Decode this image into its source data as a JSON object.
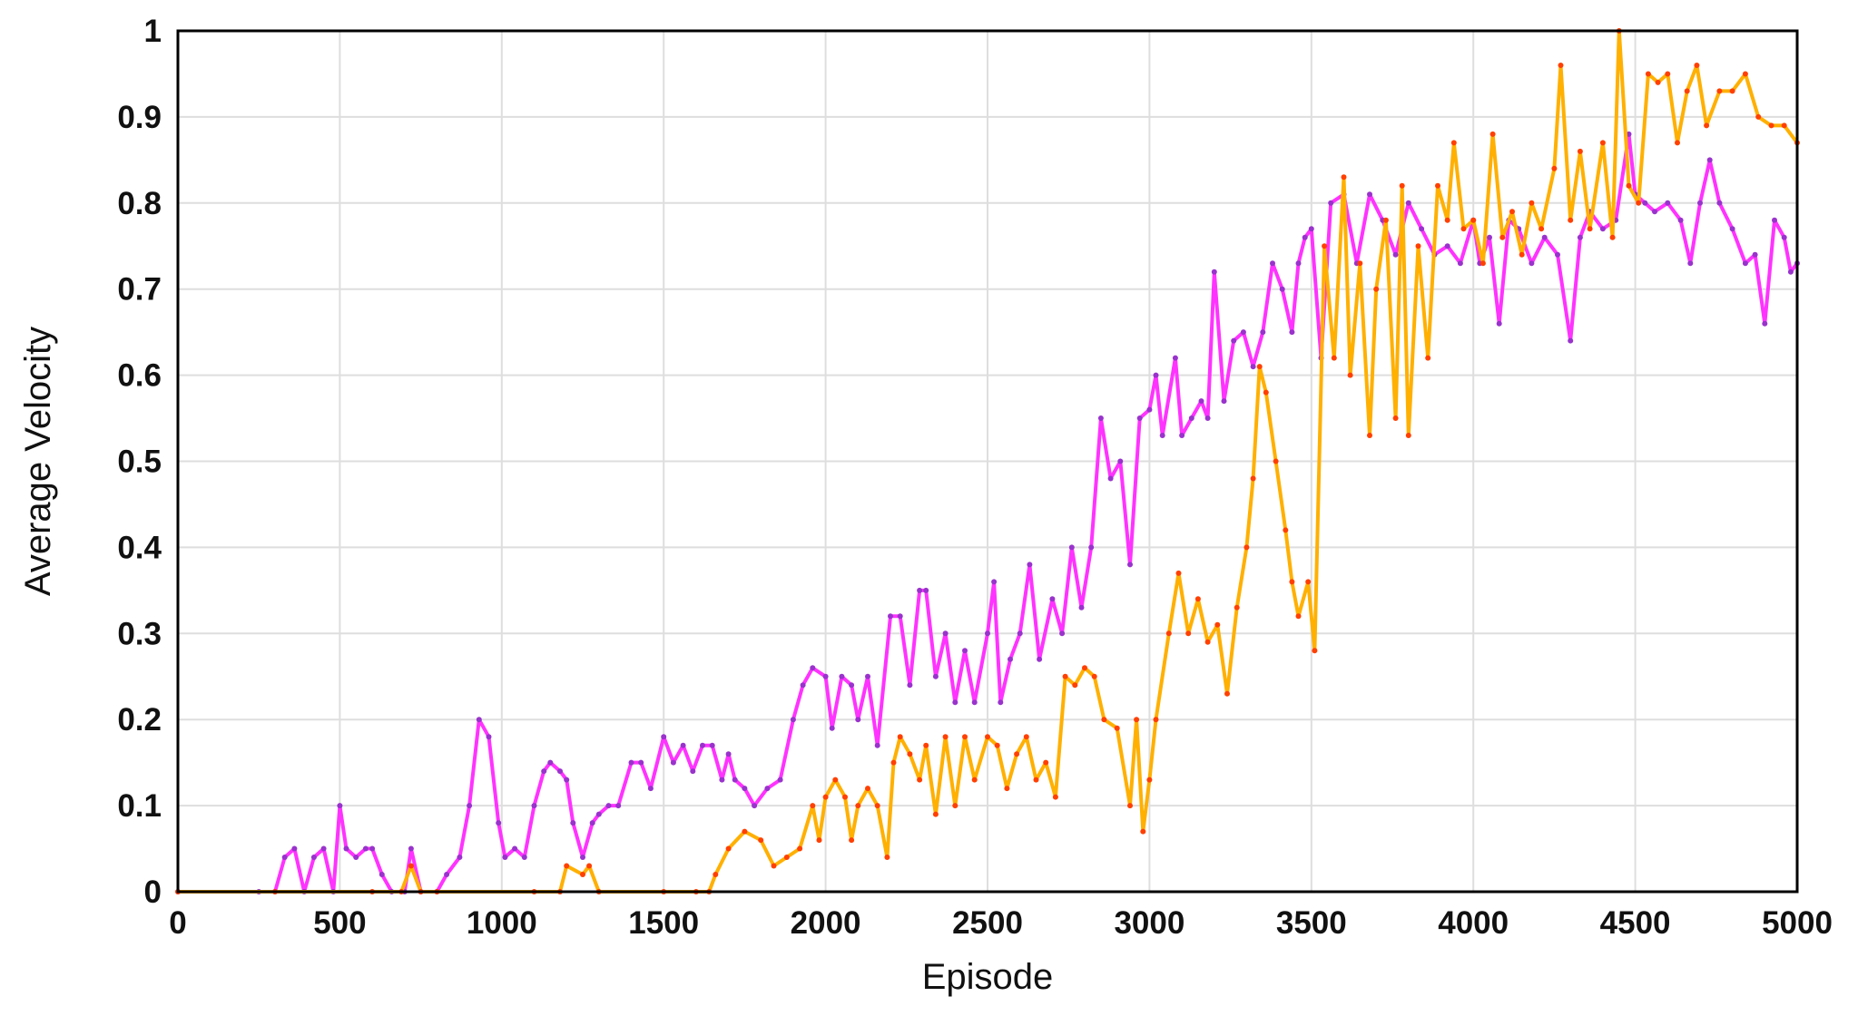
{
  "chart_data": {
    "type": "line",
    "title": "",
    "xlabel": "Episode",
    "ylabel": "Average Velocity",
    "xlim": [
      0,
      5000
    ],
    "ylim": [
      0,
      1
    ],
    "x_ticks": [
      "0",
      "500",
      "1000",
      "1500",
      "2000",
      "2500",
      "3000",
      "3500",
      "4000",
      "4500",
      "5000"
    ],
    "y_ticks": [
      "0",
      "0.1",
      "0.2",
      "0.3",
      "0.4",
      "0.5",
      "0.6",
      "0.7",
      "0.8",
      "0.9",
      "1"
    ],
    "grid": true,
    "legend": "none",
    "series": [
      {
        "color": "#ff33ff",
        "accent_color": "#9933cc",
        "points": [
          [
            0,
            0
          ],
          [
            250,
            0
          ],
          [
            300,
            0
          ],
          [
            330,
            0.04
          ],
          [
            360,
            0.05
          ],
          [
            390,
            0.0
          ],
          [
            420,
            0.04
          ],
          [
            450,
            0.05
          ],
          [
            480,
            0.0
          ],
          [
            500,
            0.1
          ],
          [
            520,
            0.05
          ],
          [
            550,
            0.04
          ],
          [
            580,
            0.05
          ],
          [
            600,
            0.05
          ],
          [
            630,
            0.02
          ],
          [
            660,
            0.0
          ],
          [
            700,
            0.0
          ],
          [
            720,
            0.05
          ],
          [
            750,
            0.0
          ],
          [
            800,
            0.0
          ],
          [
            830,
            0.02
          ],
          [
            870,
            0.04
          ],
          [
            900,
            0.1
          ],
          [
            930,
            0.2
          ],
          [
            960,
            0.18
          ],
          [
            990,
            0.08
          ],
          [
            1010,
            0.04
          ],
          [
            1040,
            0.05
          ],
          [
            1070,
            0.04
          ],
          [
            1100,
            0.1
          ],
          [
            1130,
            0.14
          ],
          [
            1150,
            0.15
          ],
          [
            1180,
            0.14
          ],
          [
            1200,
            0.13
          ],
          [
            1220,
            0.08
          ],
          [
            1250,
            0.04
          ],
          [
            1280,
            0.08
          ],
          [
            1300,
            0.09
          ],
          [
            1330,
            0.1
          ],
          [
            1360,
            0.1
          ],
          [
            1400,
            0.15
          ],
          [
            1430,
            0.15
          ],
          [
            1460,
            0.12
          ],
          [
            1500,
            0.18
          ],
          [
            1530,
            0.15
          ],
          [
            1560,
            0.17
          ],
          [
            1590,
            0.14
          ],
          [
            1620,
            0.17
          ],
          [
            1650,
            0.17
          ],
          [
            1680,
            0.13
          ],
          [
            1700,
            0.16
          ],
          [
            1720,
            0.13
          ],
          [
            1750,
            0.12
          ],
          [
            1780,
            0.1
          ],
          [
            1820,
            0.12
          ],
          [
            1860,
            0.13
          ],
          [
            1900,
            0.2
          ],
          [
            1930,
            0.24
          ],
          [
            1960,
            0.26
          ],
          [
            2000,
            0.25
          ],
          [
            2020,
            0.19
          ],
          [
            2050,
            0.25
          ],
          [
            2080,
            0.24
          ],
          [
            2100,
            0.2
          ],
          [
            2130,
            0.25
          ],
          [
            2160,
            0.17
          ],
          [
            2200,
            0.32
          ],
          [
            2230,
            0.32
          ],
          [
            2260,
            0.24
          ],
          [
            2290,
            0.35
          ],
          [
            2310,
            0.35
          ],
          [
            2340,
            0.25
          ],
          [
            2370,
            0.3
          ],
          [
            2400,
            0.22
          ],
          [
            2430,
            0.28
          ],
          [
            2460,
            0.22
          ],
          [
            2500,
            0.3
          ],
          [
            2520,
            0.36
          ],
          [
            2540,
            0.22
          ],
          [
            2570,
            0.27
          ],
          [
            2600,
            0.3
          ],
          [
            2630,
            0.38
          ],
          [
            2660,
            0.27
          ],
          [
            2700,
            0.34
          ],
          [
            2730,
            0.3
          ],
          [
            2760,
            0.4
          ],
          [
            2790,
            0.33
          ],
          [
            2820,
            0.4
          ],
          [
            2850,
            0.55
          ],
          [
            2880,
            0.48
          ],
          [
            2910,
            0.5
          ],
          [
            2940,
            0.38
          ],
          [
            2970,
            0.55
          ],
          [
            3000,
            0.56
          ],
          [
            3020,
            0.6
          ],
          [
            3040,
            0.53
          ],
          [
            3080,
            0.62
          ],
          [
            3100,
            0.53
          ],
          [
            3130,
            0.55
          ],
          [
            3160,
            0.57
          ],
          [
            3180,
            0.55
          ],
          [
            3200,
            0.72
          ],
          [
            3230,
            0.57
          ],
          [
            3260,
            0.64
          ],
          [
            3290,
            0.65
          ],
          [
            3320,
            0.61
          ],
          [
            3350,
            0.65
          ],
          [
            3380,
            0.73
          ],
          [
            3410,
            0.7
          ],
          [
            3440,
            0.65
          ],
          [
            3460,
            0.73
          ],
          [
            3480,
            0.76
          ],
          [
            3500,
            0.77
          ],
          [
            3530,
            0.62
          ],
          [
            3560,
            0.8
          ],
          [
            3600,
            0.81
          ],
          [
            3640,
            0.73
          ],
          [
            3680,
            0.81
          ],
          [
            3720,
            0.78
          ],
          [
            3760,
            0.74
          ],
          [
            3800,
            0.8
          ],
          [
            3840,
            0.77
          ],
          [
            3880,
            0.74
          ],
          [
            3920,
            0.75
          ],
          [
            3960,
            0.73
          ],
          [
            4000,
            0.78
          ],
          [
            4020,
            0.73
          ],
          [
            4050,
            0.76
          ],
          [
            4080,
            0.66
          ],
          [
            4110,
            0.78
          ],
          [
            4140,
            0.77
          ],
          [
            4180,
            0.73
          ],
          [
            4220,
            0.76
          ],
          [
            4260,
            0.74
          ],
          [
            4300,
            0.64
          ],
          [
            4330,
            0.76
          ],
          [
            4360,
            0.79
          ],
          [
            4400,
            0.77
          ],
          [
            4440,
            0.78
          ],
          [
            4480,
            0.88
          ],
          [
            4500,
            0.81
          ],
          [
            4530,
            0.8
          ],
          [
            4560,
            0.79
          ],
          [
            4600,
            0.8
          ],
          [
            4640,
            0.78
          ],
          [
            4670,
            0.73
          ],
          [
            4700,
            0.8
          ],
          [
            4730,
            0.85
          ],
          [
            4760,
            0.8
          ],
          [
            4800,
            0.77
          ],
          [
            4840,
            0.73
          ],
          [
            4870,
            0.74
          ],
          [
            4900,
            0.66
          ],
          [
            4930,
            0.78
          ],
          [
            4960,
            0.76
          ],
          [
            4980,
            0.72
          ],
          [
            5000,
            0.73
          ]
        ]
      },
      {
        "color": "#ffb000",
        "accent_color": "#ff4000",
        "points": [
          [
            0,
            0
          ],
          [
            300,
            0
          ],
          [
            600,
            0
          ],
          [
            690,
            0
          ],
          [
            720,
            0.03
          ],
          [
            750,
            0.0
          ],
          [
            800,
            0.0
          ],
          [
            1100,
            0.0
          ],
          [
            1180,
            0.0
          ],
          [
            1200,
            0.03
          ],
          [
            1250,
            0.02
          ],
          [
            1270,
            0.03
          ],
          [
            1300,
            0.0
          ],
          [
            1500,
            0.0
          ],
          [
            1600,
            0.0
          ],
          [
            1640,
            0.0
          ],
          [
            1660,
            0.02
          ],
          [
            1700,
            0.05
          ],
          [
            1750,
            0.07
          ],
          [
            1800,
            0.06
          ],
          [
            1840,
            0.03
          ],
          [
            1880,
            0.04
          ],
          [
            1920,
            0.05
          ],
          [
            1960,
            0.1
          ],
          [
            1980,
            0.06
          ],
          [
            2000,
            0.11
          ],
          [
            2030,
            0.13
          ],
          [
            2060,
            0.11
          ],
          [
            2080,
            0.06
          ],
          [
            2100,
            0.1
          ],
          [
            2130,
            0.12
          ],
          [
            2160,
            0.1
          ],
          [
            2190,
            0.04
          ],
          [
            2210,
            0.15
          ],
          [
            2230,
            0.18
          ],
          [
            2260,
            0.16
          ],
          [
            2290,
            0.13
          ],
          [
            2310,
            0.17
          ],
          [
            2340,
            0.09
          ],
          [
            2370,
            0.18
          ],
          [
            2400,
            0.1
          ],
          [
            2430,
            0.18
          ],
          [
            2460,
            0.13
          ],
          [
            2500,
            0.18
          ],
          [
            2530,
            0.17
          ],
          [
            2560,
            0.12
          ],
          [
            2590,
            0.16
          ],
          [
            2620,
            0.18
          ],
          [
            2650,
            0.13
          ],
          [
            2680,
            0.15
          ],
          [
            2710,
            0.11
          ],
          [
            2740,
            0.25
          ],
          [
            2770,
            0.24
          ],
          [
            2800,
            0.26
          ],
          [
            2830,
            0.25
          ],
          [
            2860,
            0.2
          ],
          [
            2900,
            0.19
          ],
          [
            2940,
            0.1
          ],
          [
            2960,
            0.2
          ],
          [
            2980,
            0.07
          ],
          [
            3000,
            0.13
          ],
          [
            3020,
            0.2
          ],
          [
            3060,
            0.3
          ],
          [
            3090,
            0.37
          ],
          [
            3120,
            0.3
          ],
          [
            3150,
            0.34
          ],
          [
            3180,
            0.29
          ],
          [
            3210,
            0.31
          ],
          [
            3240,
            0.23
          ],
          [
            3270,
            0.33
          ],
          [
            3300,
            0.4
          ],
          [
            3320,
            0.48
          ],
          [
            3340,
            0.61
          ],
          [
            3360,
            0.58
          ],
          [
            3390,
            0.5
          ],
          [
            3420,
            0.42
          ],
          [
            3440,
            0.36
          ],
          [
            3460,
            0.32
          ],
          [
            3490,
            0.36
          ],
          [
            3510,
            0.28
          ],
          [
            3540,
            0.75
          ],
          [
            3570,
            0.62
          ],
          [
            3600,
            0.83
          ],
          [
            3620,
            0.6
          ],
          [
            3650,
            0.73
          ],
          [
            3680,
            0.53
          ],
          [
            3700,
            0.7
          ],
          [
            3730,
            0.78
          ],
          [
            3760,
            0.55
          ],
          [
            3780,
            0.82
          ],
          [
            3800,
            0.53
          ],
          [
            3830,
            0.75
          ],
          [
            3860,
            0.62
          ],
          [
            3890,
            0.82
          ],
          [
            3920,
            0.78
          ],
          [
            3940,
            0.87
          ],
          [
            3970,
            0.77
          ],
          [
            4000,
            0.78
          ],
          [
            4030,
            0.73
          ],
          [
            4060,
            0.88
          ],
          [
            4090,
            0.76
          ],
          [
            4120,
            0.79
          ],
          [
            4150,
            0.74
          ],
          [
            4180,
            0.8
          ],
          [
            4210,
            0.77
          ],
          [
            4250,
            0.84
          ],
          [
            4270,
            0.96
          ],
          [
            4300,
            0.78
          ],
          [
            4330,
            0.86
          ],
          [
            4360,
            0.77
          ],
          [
            4400,
            0.87
          ],
          [
            4430,
            0.76
          ],
          [
            4450,
            1.0
          ],
          [
            4480,
            0.82
          ],
          [
            4510,
            0.8
          ],
          [
            4540,
            0.95
          ],
          [
            4570,
            0.94
          ],
          [
            4600,
            0.95
          ],
          [
            4630,
            0.87
          ],
          [
            4660,
            0.93
          ],
          [
            4690,
            0.96
          ],
          [
            4720,
            0.89
          ],
          [
            4760,
            0.93
          ],
          [
            4800,
            0.93
          ],
          [
            4840,
            0.95
          ],
          [
            4880,
            0.9
          ],
          [
            4920,
            0.89
          ],
          [
            4960,
            0.89
          ],
          [
            5000,
            0.87
          ]
        ]
      }
    ]
  }
}
